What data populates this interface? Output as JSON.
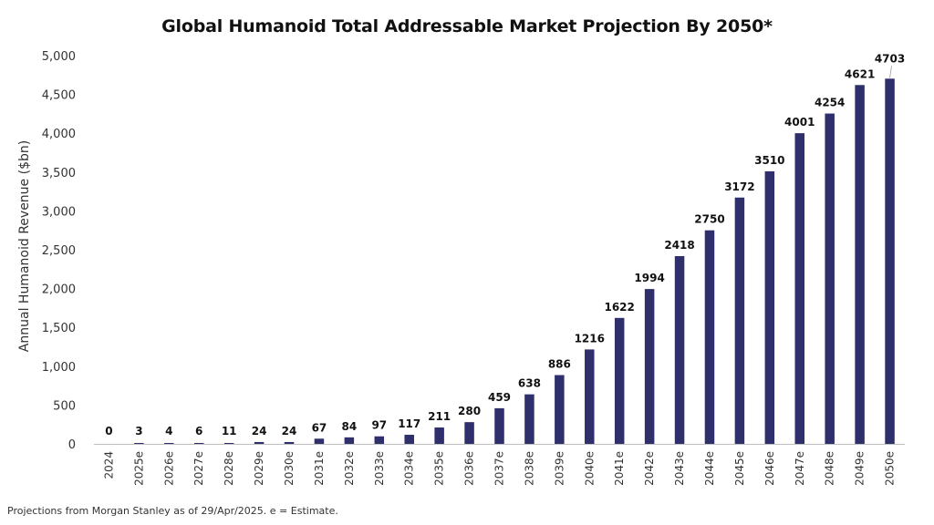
{
  "title": "Global Humanoid Total Addressable Market Projection By 2050*",
  "footnote": "Projections from Morgan Stanley as of 29/Apr/2025. e = Estimate.",
  "colors": {
    "bar": "#2e2f6b",
    "axis": "#bfbfbf",
    "text": "#333333"
  },
  "chart_data": {
    "type": "bar",
    "title": "Global Humanoid Total Addressable Market Projection By 2050*",
    "xlabel": "",
    "ylabel": "Annual Humanoid Revenue ($bn)",
    "ylim": [
      0,
      5000
    ],
    "yticks": [
      "0",
      "500",
      "1,000",
      "1,500",
      "2,000",
      "2,500",
      "3,000",
      "3,500",
      "4,000",
      "4,500",
      "5,000"
    ],
    "grid": false,
    "categories": [
      "2024",
      "2025e",
      "2026e",
      "2027e",
      "2028e",
      "2029e",
      "2030e",
      "2031e",
      "2032e",
      "2033e",
      "2034e",
      "2035e",
      "2036e",
      "2037e",
      "2038e",
      "2039e",
      "2040e",
      "2041e",
      "2042e",
      "2043e",
      "2044e",
      "2045e",
      "2046e",
      "2047e",
      "2048e",
      "2049e",
      "2050e"
    ],
    "values": [
      0,
      3,
      4,
      6,
      11,
      24,
      24,
      67,
      84,
      97,
      117,
      211,
      280,
      459,
      638,
      886,
      1216,
      1622,
      1994,
      2418,
      2750,
      3172,
      3510,
      4001,
      4254,
      4621,
      4703
    ],
    "labels": [
      "0",
      "3",
      "4",
      "6",
      "11",
      "24",
      "24",
      "67",
      "84",
      "97",
      "117",
      "211",
      "280",
      "459",
      "638",
      "886",
      "1216",
      "1622",
      "1994",
      "2418",
      "2750",
      "3172",
      "3510",
      "4001",
      "4254",
      "4621",
      "4703"
    ]
  }
}
